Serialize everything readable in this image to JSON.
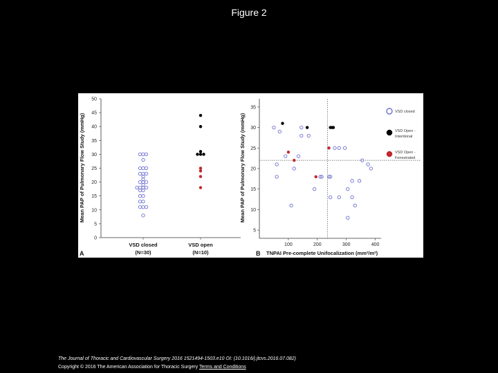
{
  "slide": {
    "title": "Figure 2",
    "citation": "The Journal of Thoracic and Cardiovascular Surgery 2016 1521494-1503.e10 OI: (10.1016/j.jtcvs.2016.07.082)",
    "copyright": "Copyright © 2016 The American Association for Thoracic Surgery",
    "terms_link": "Terms and Conditions"
  },
  "colors": {
    "closed": "#6a6fd0",
    "open_intentional": "#000000",
    "open_fenestrated": "#c0282d"
  },
  "chart_data": [
    {
      "panel": "A",
      "type": "scatter",
      "ylabel": "Mean PAP of Pulmonary Flow Study (mmHg)",
      "xlabel": "",
      "ylim": [
        0,
        50
      ],
      "yticks": [
        0,
        5,
        10,
        15,
        20,
        25,
        30,
        35,
        40,
        45,
        50
      ],
      "categories": [
        {
          "label": "VSD closed",
          "sublabel": "(N=30)"
        },
        {
          "label": "VSD open",
          "sublabel": "(N=10)"
        }
      ],
      "series": [
        {
          "key": "closed",
          "category": 0,
          "marker": "open-circle",
          "values": [
            30,
            30,
            30,
            28,
            25,
            25,
            25,
            23,
            23,
            23,
            22,
            21,
            20,
            20,
            20,
            19,
            18,
            18,
            18,
            18,
            17,
            17,
            15,
            15,
            13,
            13,
            11,
            11,
            11,
            8
          ]
        },
        {
          "key": "open_intentional",
          "category": 1,
          "marker": "filled-circle",
          "values": [
            44,
            40,
            31,
            30,
            30,
            30
          ]
        },
        {
          "key": "open_fenestrated",
          "category": 1,
          "marker": "filled-circle",
          "values": [
            25,
            24,
            22,
            18
          ]
        }
      ]
    },
    {
      "panel": "B",
      "type": "scatter",
      "xlabel": "TNPAI Pre-complete Unifocalization (mm²/m²)",
      "ylabel": "Mean PAP of Pulmonary Flow Study (mmHg)",
      "xlim": [
        0,
        420
      ],
      "ylim": [
        3,
        37
      ],
      "xticks": [
        100,
        200,
        300,
        400
      ],
      "yticks": [
        5,
        10,
        15,
        20,
        25,
        30,
        35
      ],
      "reference_lines": {
        "x": 235,
        "y": 22
      },
      "legend": [
        {
          "key": "closed",
          "label": "VSD closed"
        },
        {
          "key": "open_intentional",
          "label": "VSD Open - Intentional"
        },
        {
          "key": "open_fenestrated",
          "label": "VSD Open - Fenestrated"
        }
      ],
      "legend_position": "right",
      "series": [
        {
          "key": "closed",
          "marker": "open-circle",
          "points": [
            [
              50,
              30
            ],
            [
              145,
              30
            ],
            [
              70,
              29
            ],
            [
              145,
              28
            ],
            [
              170,
              28
            ],
            [
              260,
              25
            ],
            [
              275,
              25
            ],
            [
              295,
              25
            ],
            [
              90,
              23
            ],
            [
              135,
              23
            ],
            [
              60,
              21
            ],
            [
              355,
              22
            ],
            [
              375,
              21
            ],
            [
              385,
              20
            ],
            [
              120,
              20
            ],
            [
              240,
              18
            ],
            [
              245,
              18
            ],
            [
              60,
              18
            ],
            [
              210,
              18
            ],
            [
              215,
              18
            ],
            [
              190,
              15
            ],
            [
              320,
              17
            ],
            [
              345,
              17
            ],
            [
              305,
              15
            ],
            [
              245,
              13
            ],
            [
              275,
              13
            ],
            [
              320,
              13
            ],
            [
              110,
              11
            ],
            [
              330,
              11
            ],
            [
              305,
              8
            ]
          ]
        },
        {
          "key": "open_intentional",
          "marker": "filled-circle",
          "points": [
            [
              80,
              31
            ],
            [
              165,
              30
            ],
            [
              245,
              30
            ],
            [
              250,
              30
            ],
            [
              255,
              30
            ],
            [
              255,
              30
            ]
          ]
        },
        {
          "key": "open_fenestrated",
          "marker": "filled-circle",
          "points": [
            [
              100,
              24
            ],
            [
              240,
              25
            ],
            [
              120,
              22
            ],
            [
              195,
              18
            ]
          ]
        }
      ]
    }
  ]
}
